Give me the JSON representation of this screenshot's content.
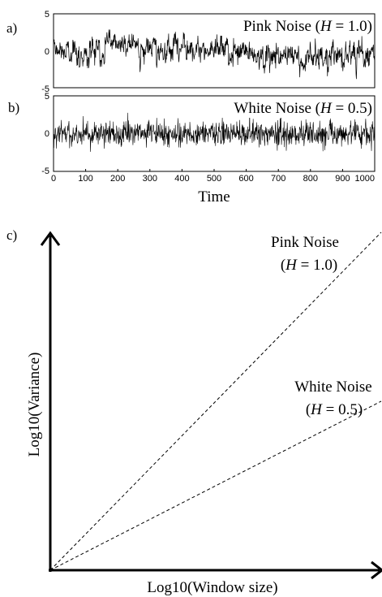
{
  "chart_data": [
    {
      "panel": "a)",
      "type": "line",
      "series": [
        {
          "name": "Pink Noise (H = 1.0)",
          "kind": "pink",
          "n": 1000
        }
      ],
      "title_main": "Pink Noise (",
      "title_var": "H",
      "title_rest": " = 1.0)",
      "xlim": [
        0,
        1000
      ],
      "ylim": [
        -5,
        5
      ],
      "yticks": [
        "5",
        "0",
        "-5"
      ],
      "xticks": [],
      "line_color": "#000000"
    },
    {
      "panel": "b)",
      "type": "line",
      "series": [
        {
          "name": "White Noise (H = 0.5)",
          "kind": "white",
          "n": 1000
        }
      ],
      "title_main": "White Noise (",
      "title_var": "H",
      "title_rest": " = 0.5)",
      "xlim": [
        0,
        1000
      ],
      "ylim": [
        -5,
        5
      ],
      "yticks": [
        "5",
        "0",
        "-5"
      ],
      "xticks": [
        "0",
        "100",
        "200",
        "300",
        "400",
        "500",
        "600",
        "700",
        "800",
        "900",
        "1000"
      ],
      "xlabel": "Time",
      "line_color": "#000000"
    },
    {
      "panel": "c)",
      "type": "line",
      "xlabel": "Log10(Window size)",
      "ylabel": "Log10(Variance)",
      "series": [
        {
          "name": "Pink Noise",
          "label_line1": "Pink Noise",
          "label_var": "H",
          "label_rest": " = 1.0)",
          "slope": 1.0
        },
        {
          "name": "White Noise",
          "label_line1": "White Noise",
          "label_var": "H",
          "label_rest": " = 0.5)",
          "slope": 0.5
        }
      ],
      "ticks": "none",
      "line_style": "dashed"
    }
  ]
}
